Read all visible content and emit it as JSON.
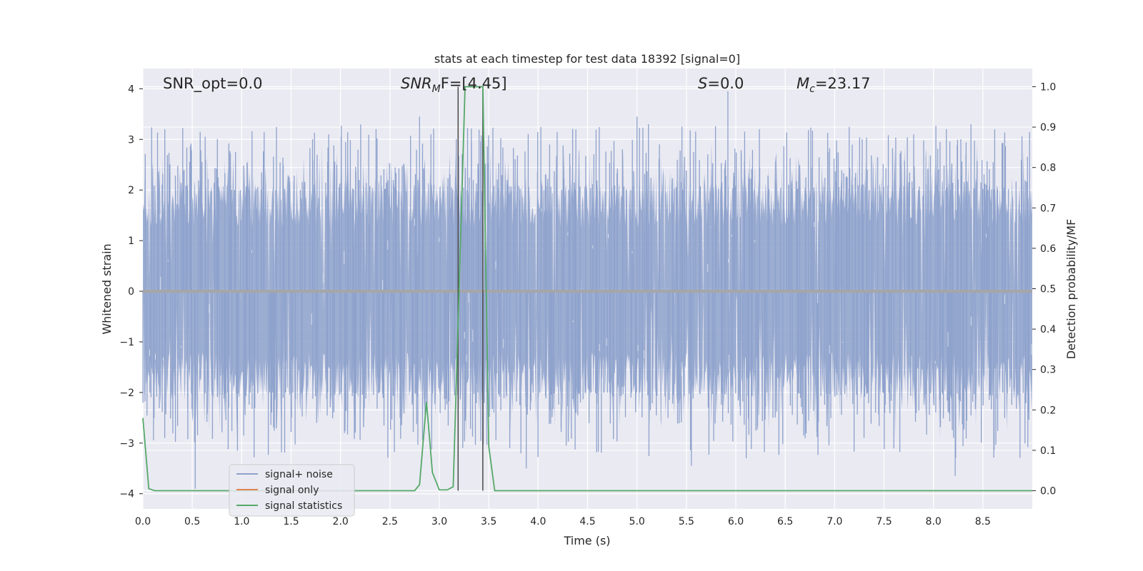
{
  "chart_data": {
    "type": "line",
    "title": "stats at each timestep for test data 18392 [signal=0]",
    "xlabel": "Time (s)",
    "ylabel": "Whitened strain",
    "y2label": "Detection probability/MF",
    "xlim": [
      0,
      9
    ],
    "ylim": [
      -4.3,
      4.4
    ],
    "y2lim": [
      -0.045,
      1.045
    ],
    "x_ticks": [
      "0.0",
      "0.5",
      "1.0",
      "1.5",
      "2.0",
      "2.5",
      "3.0",
      "3.5",
      "4.0",
      "4.5",
      "5.0",
      "5.5",
      "6.0",
      "6.5",
      "7.0",
      "7.5",
      "8.0",
      "8.5"
    ],
    "y_ticks": [
      "4",
      "3",
      "2",
      "1",
      "0",
      "−1",
      "−2",
      "−3",
      "−4"
    ],
    "y2_ticks": [
      "1.0",
      "0.9",
      "0.8",
      "0.7",
      "0.6",
      "0.5",
      "0.4",
      "0.3",
      "0.2",
      "0.1",
      "0.0"
    ],
    "grid": true,
    "legend_position": "lower-left",
    "annotations": {
      "snr_opt": "SNR_opt=0.0",
      "snr_mf_sym": "SNR",
      "snr_mf_sub": "M",
      "snr_mf_rest": "F=[4.45]",
      "s_sym": "S",
      "s_rest": "=0.0",
      "mc_sym": "M",
      "mc_sub": "c",
      "mc_rest": "=23.17"
    },
    "markers": [
      {
        "x": 3.19,
        "y_from": 0.0,
        "y_to": 1.0
      },
      {
        "x": 3.44,
        "y_from": 0.0,
        "y_to": 1.0
      }
    ],
    "series": [
      {
        "name": "signal+ noise",
        "color": "#8ea2cc",
        "axis": "left",
        "noise_envelope": {
          "typical_amplitude": 2.0,
          "peak_max": 3.95,
          "peak_min": -3.9
        },
        "peaks": [
          {
            "x": 0.53,
            "y": -3.9
          },
          {
            "x": 0.58,
            "y": 3.15
          },
          {
            "x": 1.88,
            "y": 3.1
          },
          {
            "x": 2.8,
            "y": 3.45
          },
          {
            "x": 5.0,
            "y": 3.45
          },
          {
            "x": 5.92,
            "y": 3.95
          },
          {
            "x": 7.8,
            "y": 3.1
          },
          {
            "x": 8.22,
            "y": -3.65
          },
          {
            "x": 8.62,
            "y": 3.2
          },
          {
            "x": 8.38,
            "y": 3.3
          },
          {
            "x": 3.88,
            "y": -3.5
          },
          {
            "x": 5.55,
            "y": -3.45
          }
        ]
      },
      {
        "name": "signal only",
        "color": "#dd8452",
        "axis": "left",
        "x": [
          0,
          9
        ],
        "y": [
          0,
          0
        ]
      },
      {
        "name": "signal statistics",
        "color": "#55a868",
        "axis": "right",
        "x": [
          0.0,
          0.06,
          0.12,
          2.75,
          2.8,
          2.87,
          2.93,
          3.0,
          3.08,
          3.14,
          3.2,
          3.26,
          3.33,
          3.44,
          3.5,
          3.56,
          9.0
        ],
        "y": [
          0.18,
          0.005,
          0.0,
          0.0,
          0.015,
          0.22,
          0.045,
          0.002,
          0.002,
          0.01,
          0.5,
          1.0,
          1.0,
          1.0,
          0.11,
          0.0,
          0.0
        ]
      }
    ]
  }
}
